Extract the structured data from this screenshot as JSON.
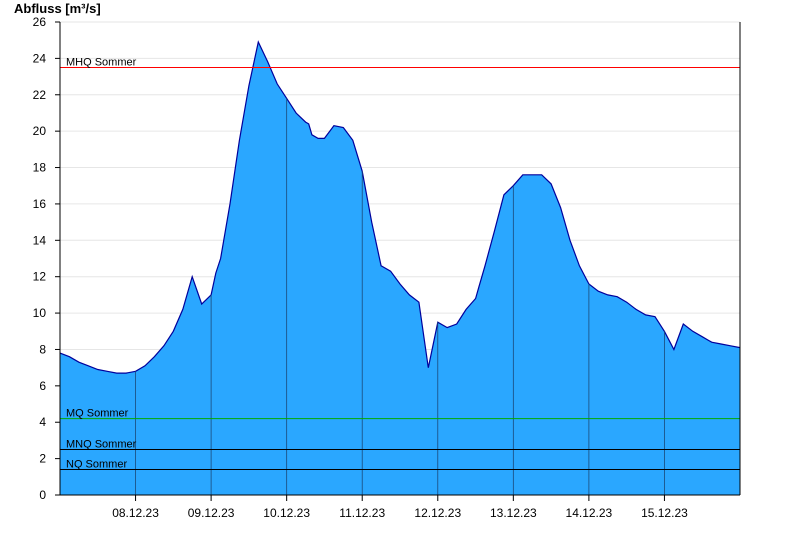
{
  "chart_data": {
    "type": "area",
    "ylabel": "Abfluss [m³/s]",
    "ylim": [
      0,
      26
    ],
    "yticks": [
      0,
      2,
      4,
      6,
      8,
      10,
      12,
      14,
      16,
      18,
      20,
      22,
      24,
      26
    ],
    "xlim": [
      "07.12.23 00:00",
      "16.12.23 00:00"
    ],
    "xticks": [
      "08.12.23",
      "09.12.23",
      "10.12.23",
      "11.12.23",
      "12.12.23",
      "13.12.23",
      "14.12.23",
      "15.12.23"
    ],
    "grid": true,
    "colors": {
      "area": "#2aa7ff",
      "outline": "#00009c",
      "mhq": "#ff0000",
      "mq": "#00aa00",
      "mnq": "#000000",
      "nq": "#000000"
    },
    "reference_lines": [
      {
        "name": "MHQ Sommer",
        "value": 23.5,
        "color": "#ff0000"
      },
      {
        "name": "MQ Sommer",
        "value": 4.2,
        "color": "#00aa00"
      },
      {
        "name": "MNQ Sommer",
        "value": 2.5,
        "color": "#000000"
      },
      {
        "name": "NQ Sommer",
        "value": 1.4,
        "color": "#000000"
      }
    ],
    "series": [
      {
        "x": [
          "07.12.23 00:00",
          "07.12.23 03:00",
          "07.12.23 06:00",
          "07.12.23 09:00",
          "07.12.23 12:00",
          "07.12.23 15:00",
          "07.12.23 18:00",
          "07.12.23 21:00",
          "08.12.23 00:00",
          "08.12.23 03:00",
          "08.12.23 06:00",
          "08.12.23 09:00",
          "08.12.23 12:00",
          "08.12.23 15:00",
          "08.12.23 18:00",
          "08.12.23 21:00",
          "09.12.23 00:00",
          "09.12.23 01:30",
          "09.12.23 03:00",
          "09.12.23 04:30",
          "09.12.23 06:00",
          "09.12.23 09:00",
          "09.12.23 12:00",
          "09.12.23 15:00",
          "09.12.23 18:00",
          "09.12.23 21:00",
          "10.12.23 00:00",
          "10.12.23 03:00",
          "10.12.23 06:00",
          "10.12.23 07:00",
          "10.12.23 08:00",
          "10.12.23 10:00",
          "10.12.23 12:00",
          "10.12.23 15:00",
          "10.12.23 18:00",
          "10.12.23 21:00",
          "11.12.23 00:00",
          "11.12.23 03:00",
          "11.12.23 06:00",
          "11.12.23 09:00",
          "11.12.23 12:00",
          "11.12.23 15:00",
          "11.12.23 18:00",
          "11.12.23 21:00",
          "12.12.23 00:00",
          "12.12.23 03:00",
          "12.12.23 06:00",
          "12.12.23 09:00",
          "12.12.23 12:00",
          "12.12.23 13:00",
          "12.12.23 15:00",
          "12.12.23 18:00",
          "12.12.23 21:00",
          "13.12.23 00:00",
          "13.12.23 03:00",
          "13.12.23 06:00",
          "13.12.23 09:00",
          "13.12.23 12:00",
          "13.12.23 15:00",
          "13.12.23 18:00",
          "13.12.23 21:00",
          "14.12.23 00:00",
          "14.12.23 03:00",
          "14.12.23 06:00",
          "14.12.23 09:00",
          "14.12.23 12:00",
          "14.12.23 15:00",
          "14.12.23 18:00",
          "14.12.23 21:00",
          "15.12.23 00:00",
          "15.12.23 03:00",
          "15.12.23 06:00",
          "15.12.23 09:00",
          "15.12.23 12:00",
          "15.12.23 14:00",
          "15.12.23 15:00",
          "15.12.23 18:00",
          "15.12.23 21:00",
          "16.12.23 00:00"
        ],
        "values": [
          7.8,
          7.6,
          7.3,
          7.1,
          6.9,
          6.8,
          6.7,
          6.7,
          6.8,
          7.1,
          7.6,
          8.2,
          9.0,
          10.2,
          12.0,
          10.5,
          11.0,
          12.2,
          13.0,
          14.5,
          16.0,
          19.5,
          22.5,
          24.9,
          23.8,
          22.6,
          21.8,
          21.0,
          20.5,
          20.4,
          19.8,
          19.6,
          19.6,
          20.3,
          20.2,
          19.5,
          17.8,
          15.0,
          12.6,
          12.3,
          11.6,
          11.0,
          10.6,
          7.0,
          9.5,
          9.2,
          9.4,
          10.2,
          10.8,
          11.4,
          12.6,
          14.5,
          16.5,
          17.0,
          17.6,
          17.6,
          17.6,
          17.1,
          15.8,
          14.0,
          12.6,
          11.6,
          11.2,
          11.0,
          10.9,
          10.6,
          10.2,
          9.9,
          9.8,
          9.0,
          8.0,
          9.4,
          9.0,
          8.7,
          8.5,
          8.4,
          8.3,
          8.2,
          8.1
        ]
      }
    ]
  }
}
